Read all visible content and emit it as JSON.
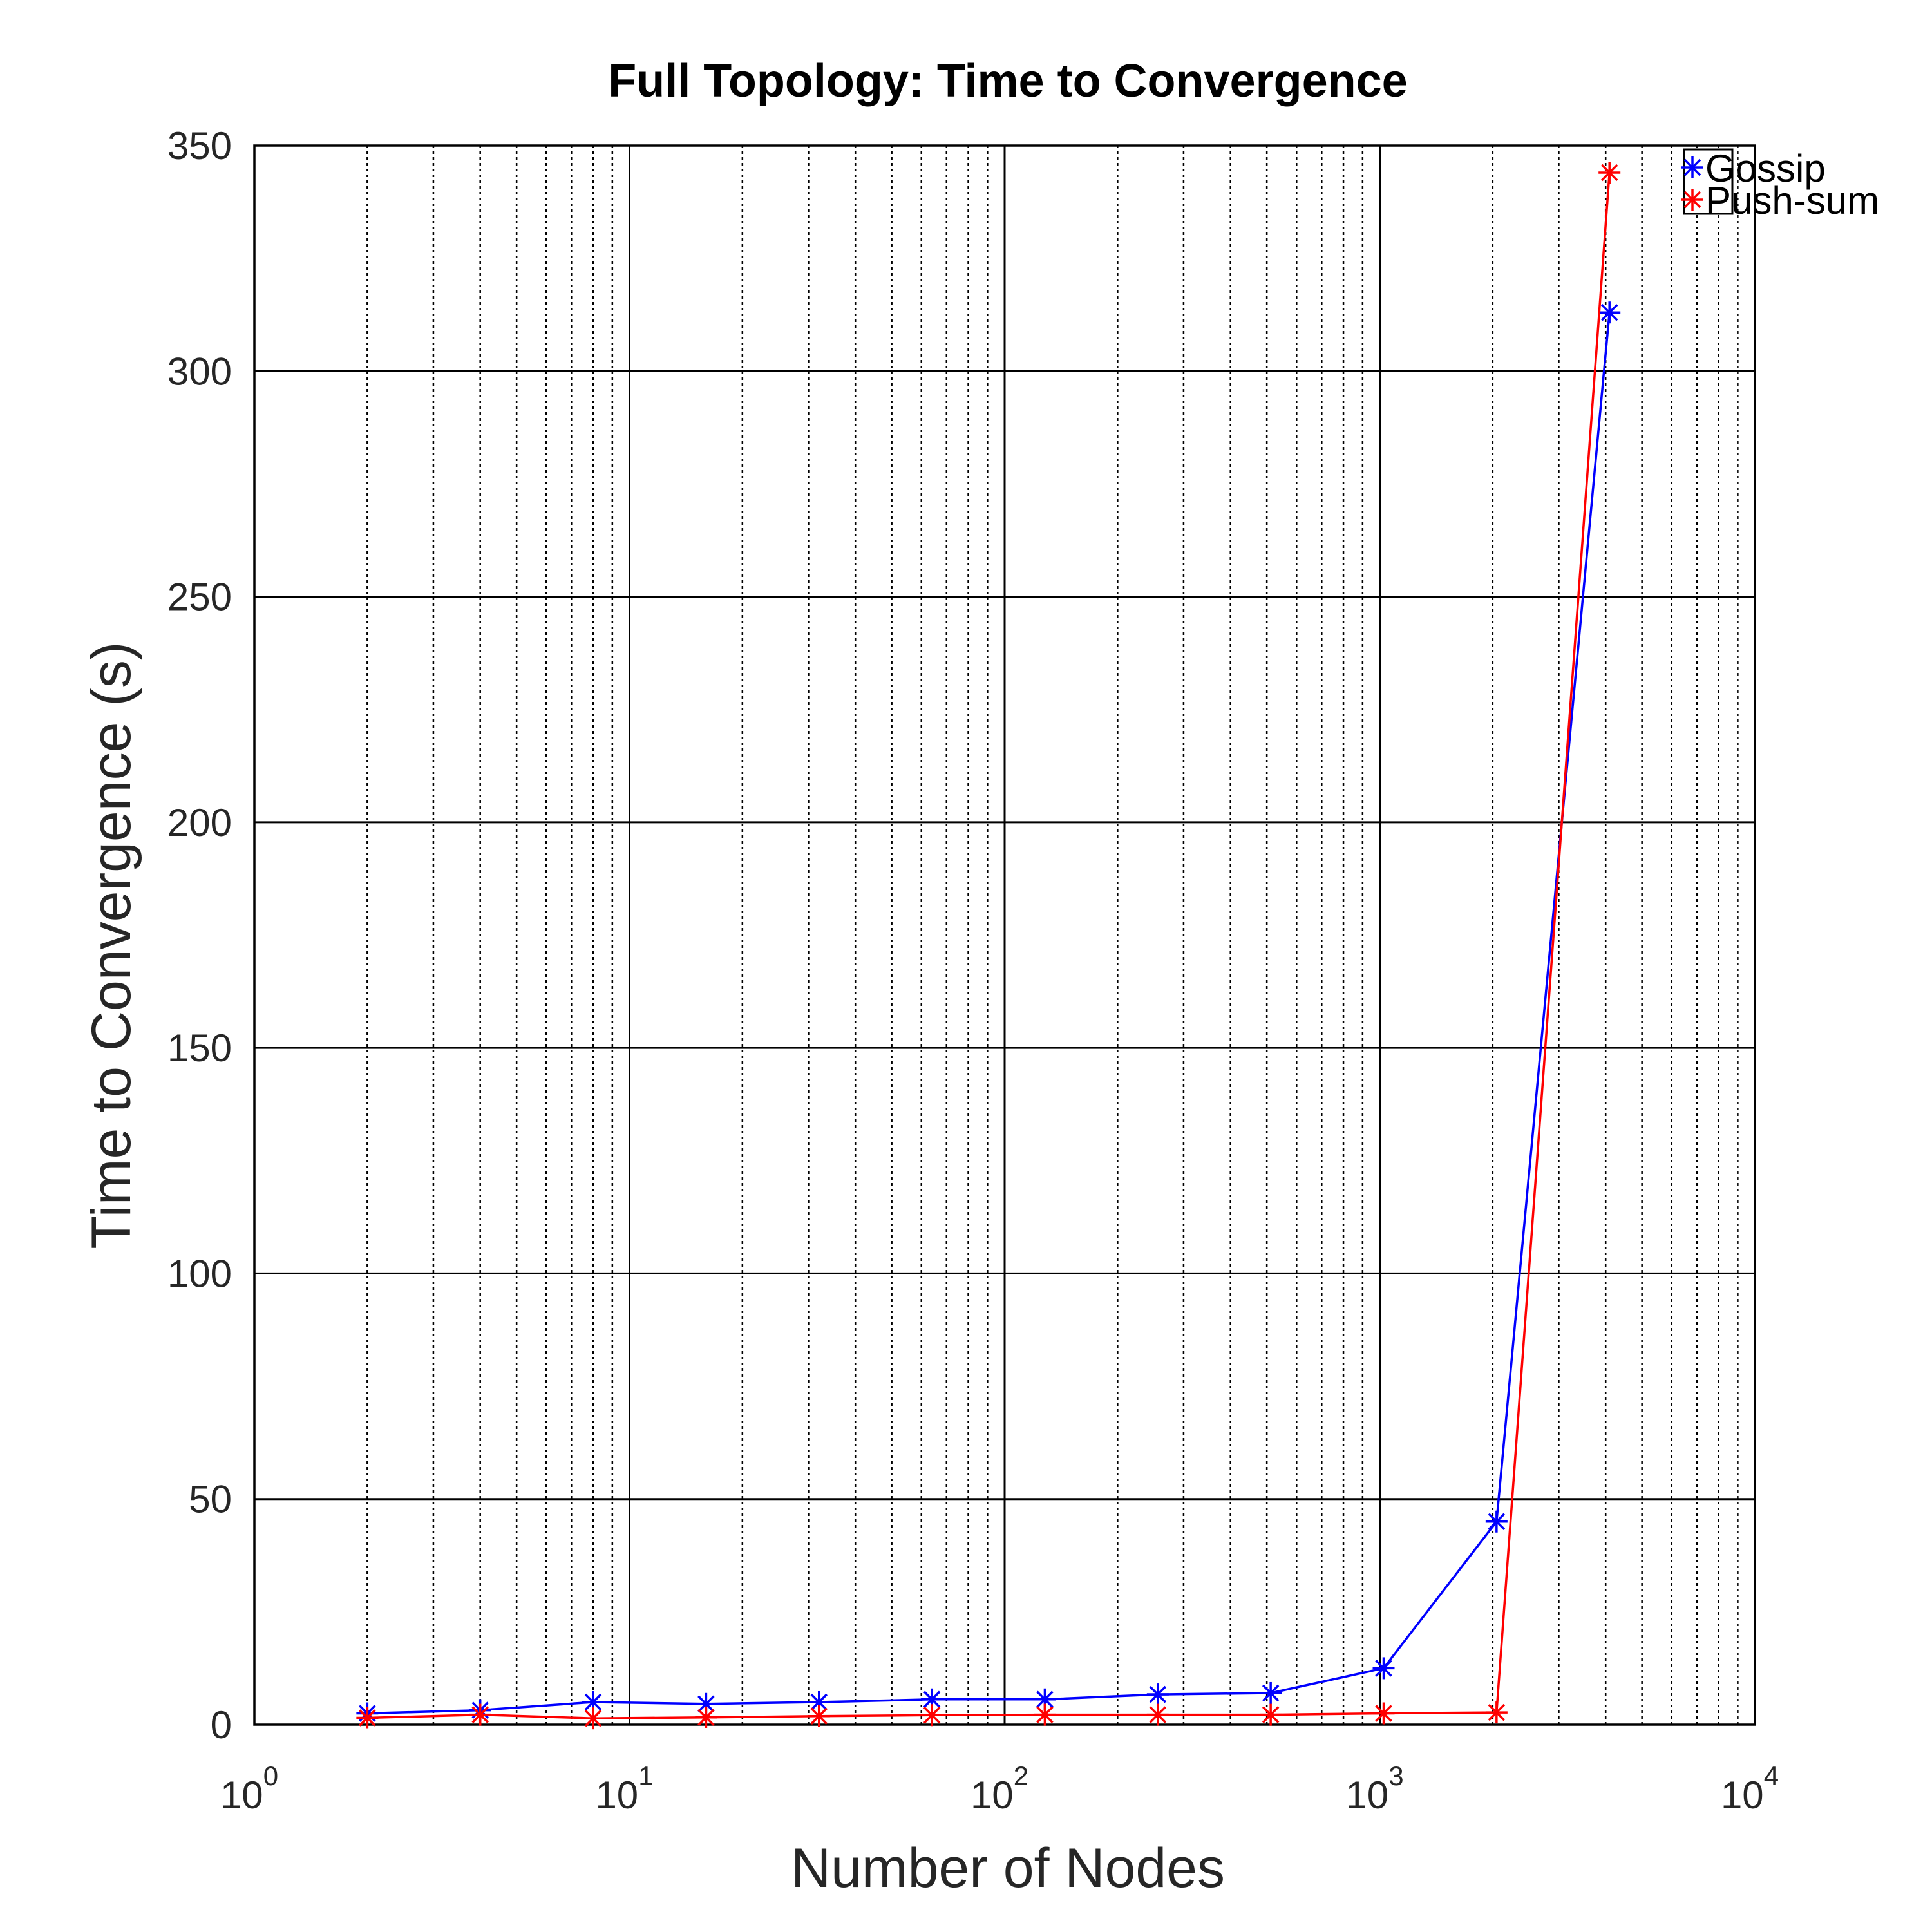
{
  "chart_data": {
    "type": "line",
    "title": "Full Topology: Time to Convergence",
    "xlabel": "Number of Nodes",
    "ylabel": "Time to Convergence (s)",
    "x_scale": "log",
    "xlim": [
      1,
      10000
    ],
    "ylim": [
      0,
      350
    ],
    "x_ticks": [
      {
        "value": 1,
        "base": "10",
        "exp": "0"
      },
      {
        "value": 10,
        "base": "10",
        "exp": "1"
      },
      {
        "value": 100,
        "base": "10",
        "exp": "2"
      },
      {
        "value": 1000,
        "base": "10",
        "exp": "3"
      },
      {
        "value": 10000,
        "base": "10",
        "exp": "4"
      }
    ],
    "y_ticks": [
      0,
      50,
      100,
      150,
      200,
      250,
      300,
      350
    ],
    "y_tick_labels": [
      "0",
      "50",
      "100",
      "150",
      "200",
      "250",
      "300",
      "350"
    ],
    "grid": true,
    "legend_position": "top-right",
    "x": [
      2,
      4,
      8,
      16,
      32,
      64,
      128,
      256,
      512,
      1024,
      2048,
      4096
    ],
    "series": [
      {
        "name": "Gossip",
        "color": "#0000ff",
        "marker": "asterisk",
        "values": [
          2.5,
          3.2,
          5.0,
          4.6,
          5.0,
          5.6,
          5.6,
          6.7,
          7.0,
          12.5,
          45.0,
          313.0
        ]
      },
      {
        "name": "Push-sum",
        "color": "#ff0000",
        "marker": "asterisk",
        "values": [
          1.5,
          2.2,
          1.4,
          1.6,
          1.9,
          2.1,
          2.2,
          2.2,
          2.2,
          2.5,
          2.7,
          344.0
        ]
      }
    ]
  }
}
